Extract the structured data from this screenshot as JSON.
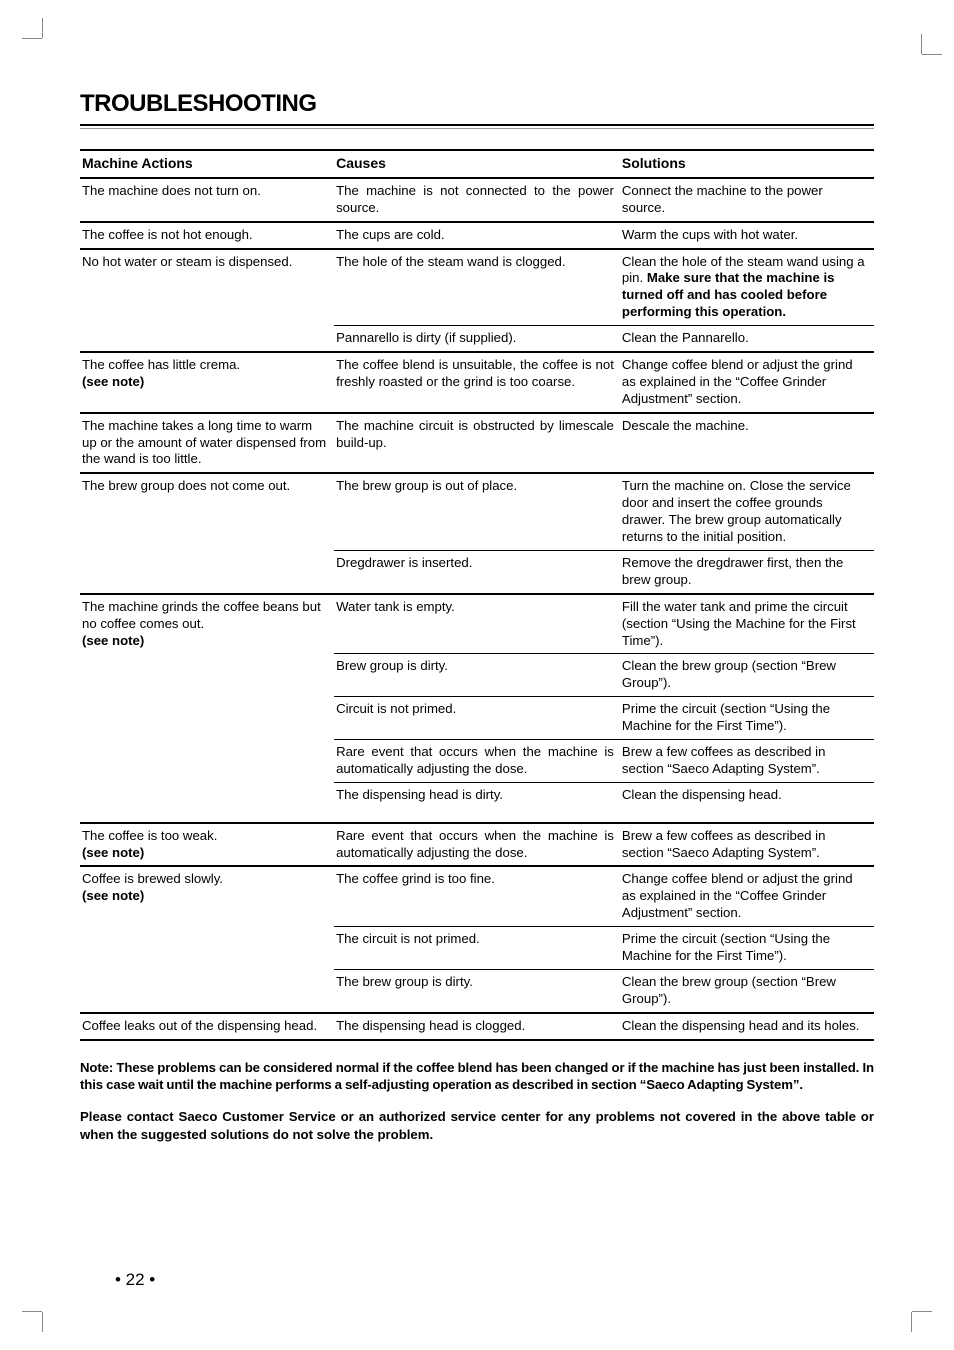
{
  "title": "TROUBLESHOOTING",
  "columns": {
    "c1": "Machine Actions",
    "c2": "Causes",
    "c3": "Solutions"
  },
  "rows": [
    {
      "action": "The machine does not turn on.",
      "cause": "The machine is not connected to the power source.",
      "solution": "Connect the machine to the power source.",
      "group_end": true
    },
    {
      "action": "The coffee is not hot enough.",
      "cause": "The cups are cold.",
      "solution": "Warm the cups with hot water.",
      "group_end": true
    },
    {
      "action": "No hot water or steam is dispensed.",
      "cause": "The hole of the steam wand is clogged.",
      "solution_pre": "Clean the hole of the steam wand using a pin. ",
      "solution_bold": "Make sure that the machine is turned off and has cooled before performing this ope­ration.",
      "action_rowspan": 2
    },
    {
      "cause": "Pannarello is dirty (if supplied).",
      "solution": "Clean the Pannarello.",
      "group_end": true
    },
    {
      "action_l1": "The coffee has little crema.",
      "action_l2_bold": "(see note)",
      "cause": "The coffee blend is unsuitable, the coffee is not freshly roasted or the grind is too coarse.",
      "solution": "Change coffee blend or adjust the grind as explained in the “Coffee Grinder Adjustment” section.",
      "group_end": true
    },
    {
      "action": "The machine takes a long time to warm up or the amount of water dispensed from the wand is too little.",
      "cause": "The machine circuit is obstructed by limescale build-up.",
      "solution": "Descale the machine.",
      "group_end": true
    },
    {
      "action": "The brew group does not come out.",
      "cause": "The brew group is out of place.",
      "solution": "Turn the machine on. Close the service door and insert the coffee grounds drawer. The brew group automatically returns to the initial position.",
      "action_rowspan": 2
    },
    {
      "cause": "Dregdrawer is inserted.",
      "solution": "Remove the dregdrawer first, then the brew group.",
      "group_end": true
    },
    {
      "action_l1": "The machine grinds the coffee beans but no coffee comes out.",
      "action_l2_bold": "(see note)",
      "cause": "Water tank is empty.",
      "solution": "Fill the water tank and prime the circuit (section “Using the Machine for the First Time”).",
      "action_rowspan": 5,
      "action_split": true
    },
    {
      "cause": "Brew group is dirty.",
      "solution": "Clean the brew group (section “Brew Group”)."
    },
    {
      "cause": "Circuit is not primed.",
      "solution": "Prime the circuit (section “Using the Machine for the First Time”)."
    },
    {
      "cause": "Rare event that occurs when the machine is auto­matically adjusting the dose.",
      "solution": "Brew a few coffees as described in section “Saeco Adapting System”."
    },
    {
      "cause": "The dispensing head is dirty.",
      "solution": "Clean the dispensing head.",
      "group_end": true,
      "extra_pad": true
    },
    {
      "action_l1": "The coffee is too weak.",
      "action_l2_bold": "(see note)",
      "cause": "Rare event that occurs when the machine is auto­matically adjusting the dose.",
      "solution": "Brew a few coffees as described in section “Saeco Adapting System”.",
      "group_end": true
    },
    {
      "action_l1": "Coffee is brewed slowly.",
      "action_l2_bold": "(see note)",
      "cause": "The coffee grind is too fine.",
      "solution": "Change coffee blend or adjust the grind as ex­plained in the “Coffee Grinder Adjustment” sec­tion.",
      "action_rowspan": 3
    },
    {
      "cause": "The circuit is not primed.",
      "solution": "Prime the circuit (section “Using the Machine for the First Time”)."
    },
    {
      "cause": "The brew group is dirty.",
      "solution": "Clean the brew group (section “Brew Group”).",
      "group_end": true
    },
    {
      "action": "Coffee leaks out of the dispensing head.",
      "cause": "The dispensing head is clogged.",
      "solution": "Clean the dispensing head and its holes.",
      "group_end": true,
      "last": true
    }
  ],
  "notes": {
    "p1": "Note: These problems can be considered normal if the coffee blend has been changed or if the machine has just been installed. In this case wait until the machine performs a self-adjusting operation as described in section “Saeco Adapting System”.",
    "p2": "Please contact Saeco Customer Service or an authorized service center for any problems not covered in the above table or when the suggested solutions do not solve the problem."
  },
  "page_number": "• 22 •"
}
